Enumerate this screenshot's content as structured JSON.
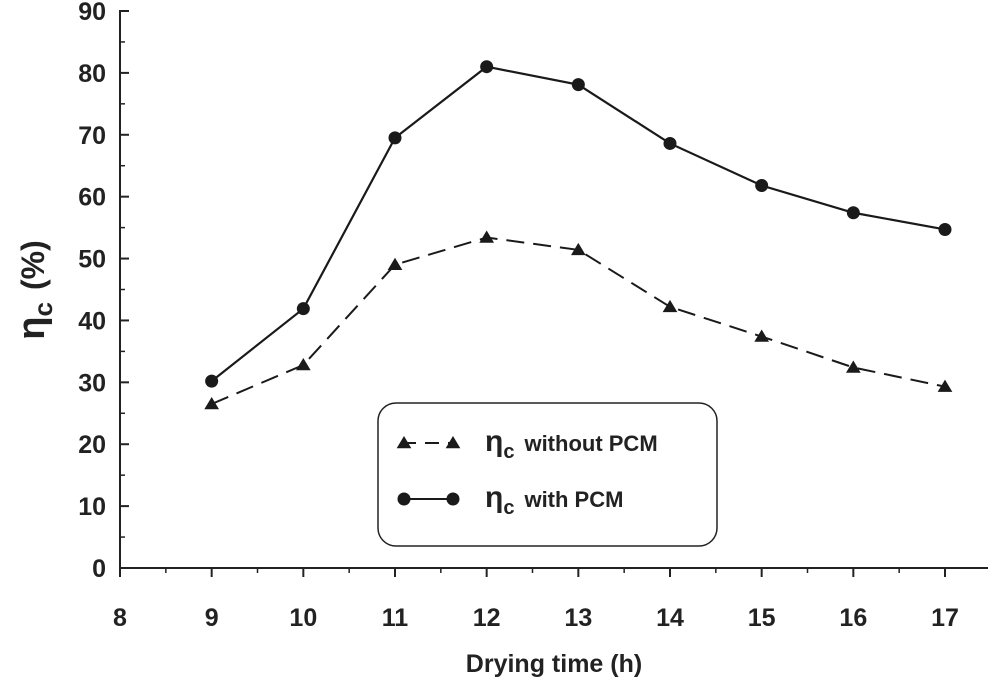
{
  "chart_data": {
    "type": "line",
    "title": "",
    "xlabel": "Drying time (h)",
    "ylabel_symbol": "η",
    "ylabel_subscript": "c",
    "ylabel_unit": "(%)",
    "xlim": [
      8,
      17
    ],
    "ylim": [
      0,
      90
    ],
    "x_ticks": [
      "8",
      "9",
      "10",
      "11",
      "12",
      "13",
      "14",
      "15",
      "16",
      "17"
    ],
    "y_ticks": [
      "0",
      "10",
      "20",
      "30",
      "40",
      "50",
      "60",
      "70",
      "80",
      "90"
    ],
    "x": [
      9,
      10,
      11,
      12,
      13,
      14,
      15,
      16,
      17
    ],
    "series": [
      {
        "name": "without PCM",
        "legend_symbol": "η",
        "legend_subscript": "c",
        "legend_suffix": "without PCM",
        "marker": "triangle",
        "line_style": "dashed",
        "color": "#1a1a1a",
        "values": [
          26.5,
          32.8,
          49,
          53.4,
          51.4,
          42.2,
          37.4,
          32.4,
          29.3
        ]
      },
      {
        "name": "with PCM",
        "legend_symbol": "η",
        "legend_subscript": "c",
        "legend_suffix": "with PCM",
        "marker": "circle",
        "line_style": "solid",
        "color": "#1a1a1a",
        "values": [
          30.2,
          41.9,
          69.5,
          81,
          78.1,
          68.6,
          61.8,
          57.4,
          54.7
        ]
      }
    ],
    "legend_position": "bottom-center",
    "grid": false
  }
}
